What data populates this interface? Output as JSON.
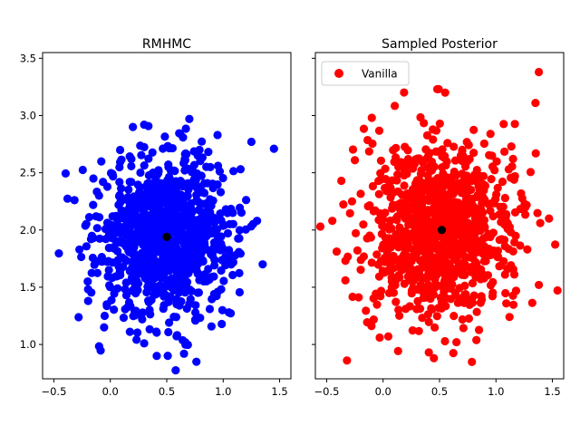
{
  "chart_data": [
    {
      "type": "scatter",
      "title": "RMHMC",
      "xlabel": "",
      "ylabel": "",
      "xlim": [
        -0.6,
        1.6
      ],
      "ylim": [
        0.7,
        3.55
      ],
      "x_ticks": [
        -0.5,
        0.0,
        0.5,
        1.0,
        1.5
      ],
      "x_tick_labels": [
        "−0.5",
        "0.0",
        "0.5",
        "1.0",
        "1.5"
      ],
      "y_ticks": [
        1.0,
        1.5,
        2.0,
        2.5,
        3.0,
        3.5
      ],
      "y_tick_labels": [
        "1.0",
        "1.5",
        "2.0",
        "2.5",
        "3.0",
        "3.5"
      ],
      "grid": false,
      "legend": null,
      "series": [
        {
          "color": "#0000ff",
          "distribution": {
            "mean": [
              0.5,
              1.95
            ],
            "std": [
              0.3,
              0.35
            ],
            "n": 1000
          },
          "points": [
            [
              -0.2,
              1.55
            ],
            [
              -0.15,
              2.45
            ],
            [
              -0.1,
              2.3
            ],
            [
              -0.05,
              1.25
            ],
            [
              1.45,
              2.71
            ],
            [
              1.3,
              2.08
            ],
            [
              1.35,
              1.7
            ],
            [
              1.05,
              1.28
            ],
            [
              0.7,
              2.97
            ],
            [
              0.3,
              2.92
            ],
            [
              0.2,
              2.9
            ],
            [
              0.95,
              2.83
            ],
            [
              0.3,
              1.01
            ],
            [
              1.25,
              2.77
            ],
            [
              -0.15,
              1.93
            ]
          ]
        },
        {
          "name": "mean",
          "color": "#000000",
          "points": [
            [
              0.5,
              1.94
            ]
          ]
        }
      ]
    },
    {
      "type": "scatter",
      "title": "Sampled Posterior",
      "xlabel": "",
      "ylabel": "",
      "xlim": [
        -0.6,
        1.6
      ],
      "ylim": [
        0.7,
        3.55
      ],
      "x_ticks": [
        -0.5,
        0.0,
        0.5,
        1.0,
        1.5
      ],
      "x_tick_labels": [
        "−0.5",
        "0.0",
        "0.5",
        "1.0",
        "1.5"
      ],
      "grid": false,
      "legend": {
        "position": "top-left",
        "entries": [
          "Vanilla"
        ]
      },
      "series": [
        {
          "name": "Vanilla",
          "color": "#ff0000",
          "distribution": {
            "mean": [
              0.52,
              2.0
            ],
            "std": [
              0.32,
              0.38
            ],
            "n": 1000
          },
          "points": [
            [
              -0.32,
              0.86
            ],
            [
              -0.45,
              2.08
            ],
            [
              -0.37,
              2.43
            ],
            [
              -0.1,
              2.98
            ],
            [
              0.48,
              3.23
            ],
            [
              1.38,
              3.38
            ],
            [
              1.35,
              3.11
            ],
            [
              0.45,
              0.88
            ],
            [
              0.65,
              1.02
            ],
            [
              -0.03,
              1.06
            ],
            [
              1.12,
              1.24
            ],
            [
              1.47,
              2.1
            ],
            [
              1.38,
              1.52
            ],
            [
              0.55,
              3.2
            ],
            [
              -0.25,
              2.61
            ]
          ]
        },
        {
          "name": "mean",
          "color": "#000000",
          "points": [
            [
              0.52,
              2.0
            ]
          ]
        }
      ]
    }
  ]
}
